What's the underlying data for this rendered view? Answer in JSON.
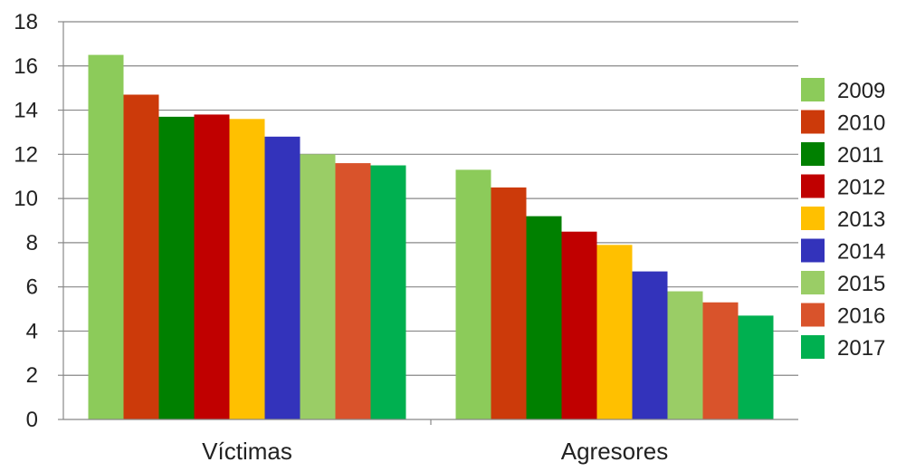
{
  "chart_data": {
    "type": "bar",
    "title": "",
    "xlabel": "",
    "ylabel": "",
    "ylim": [
      0,
      18
    ],
    "yticks": [
      "0",
      "2",
      "4",
      "6",
      "8",
      "10",
      "12",
      "14",
      "16",
      "18"
    ],
    "grid": true,
    "legend_position": "right",
    "categories": [
      "Víctimas",
      "Agresores"
    ],
    "series": [
      {
        "name": "2009",
        "color": "#8CCB5A",
        "values": [
          16.5,
          11.3
        ]
      },
      {
        "name": "2010",
        "color": "#CC3A0A",
        "values": [
          14.7,
          10.5
        ]
      },
      {
        "name": "2011",
        "color": "#008000",
        "values": [
          13.7,
          9.2
        ]
      },
      {
        "name": "2012",
        "color": "#C00000",
        "values": [
          13.8,
          8.5
        ]
      },
      {
        "name": "2013",
        "color": "#FFC000",
        "values": [
          13.6,
          7.9
        ]
      },
      {
        "name": "2014",
        "color": "#3333BB",
        "values": [
          12.8,
          6.7
        ]
      },
      {
        "name": "2015",
        "color": "#9ACD66",
        "values": [
          12.0,
          5.8
        ]
      },
      {
        "name": "2016",
        "color": "#D9532B",
        "values": [
          11.6,
          5.3
        ]
      },
      {
        "name": "2017",
        "color": "#00B050",
        "values": [
          11.5,
          4.7
        ]
      }
    ]
  }
}
